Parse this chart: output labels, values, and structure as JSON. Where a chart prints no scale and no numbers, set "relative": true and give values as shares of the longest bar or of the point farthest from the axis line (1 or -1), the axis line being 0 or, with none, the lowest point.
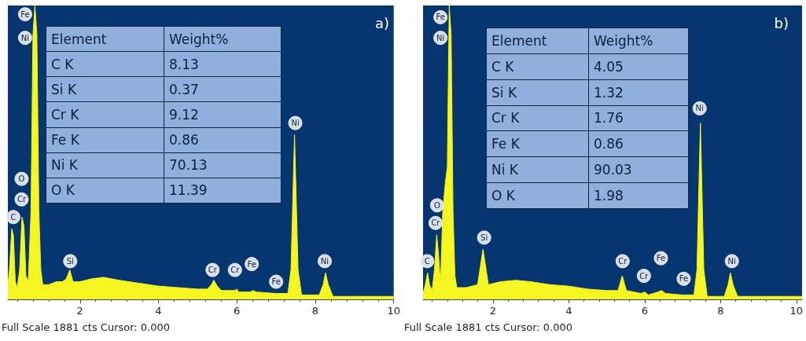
{
  "chart_data": [
    {
      "type": "area",
      "title": "a)",
      "relative": true,
      "xlim": [
        0.16,
        10.0
      ],
      "xticks": [
        2,
        4,
        6,
        8,
        10
      ],
      "grid": false,
      "series": [
        {
          "color": "#f5f520",
          "x": [
            0.16,
            0.2,
            0.26,
            0.3,
            0.35,
            0.4,
            0.46,
            0.52,
            0.57,
            0.62,
            0.68,
            0.75,
            0.8,
            0.85,
            0.9,
            0.95,
            1.0,
            1.05,
            1.2,
            1.4,
            1.55,
            1.65,
            1.74,
            1.82,
            2.0,
            2.3,
            2.6,
            3.0,
            3.5,
            4.0,
            4.5,
            5.0,
            5.25,
            5.35,
            5.41,
            5.5,
            5.6,
            5.95,
            6.0,
            6.05,
            6.35,
            6.4,
            6.5,
            7.0,
            7.3,
            7.38,
            7.47,
            7.56,
            7.65,
            8.1,
            8.2,
            8.26,
            8.33,
            8.45,
            9.0,
            10.0
          ],
          "values": [
            0.05,
            0.1,
            0.24,
            0.22,
            0.06,
            0.04,
            0.1,
            0.28,
            0.25,
            0.08,
            0.06,
            0.3,
            0.9,
            1,
            0.9,
            0.3,
            0.1,
            0.05,
            0.05,
            0.06,
            0.06,
            0.07,
            0.1,
            0.06,
            0.06,
            0.07,
            0.075,
            0.065,
            0.055,
            0.045,
            0.04,
            0.035,
            0.035,
            0.05,
            0.065,
            0.045,
            0.03,
            0.03,
            0.035,
            0.025,
            0.025,
            0.03,
            0.025,
            0.02,
            0.02,
            0.1,
            0.56,
            0.1,
            0.015,
            0.015,
            0.05,
            0.09,
            0.05,
            0.01,
            0.01,
            0.01
          ]
        }
      ],
      "annotations": [
        {
          "text": "Fe",
          "x": 0.6,
          "y": 0.97
        },
        {
          "text": "Ni",
          "x": 0.6,
          "y": 0.89
        },
        {
          "text": "O",
          "x": 0.51,
          "y": 0.41
        },
        {
          "text": "Cr",
          "x": 0.51,
          "y": 0.34
        },
        {
          "text": "C",
          "x": 0.3,
          "y": 0.28
        },
        {
          "text": "Si",
          "x": 1.75,
          "y": 0.13
        },
        {
          "text": "Ni",
          "x": 7.49,
          "y": 0.6
        },
        {
          "text": "Cr",
          "x": 5.38,
          "y": 0.1
        },
        {
          "text": "Cr",
          "x": 5.95,
          "y": 0.1
        },
        {
          "text": "Fe",
          "x": 6.38,
          "y": 0.12
        },
        {
          "text": "Fe",
          "x": 7.0,
          "y": 0.06
        },
        {
          "text": "Ni",
          "x": 8.24,
          "y": 0.13
        },
        "Full Scale 1881 cts Cursor: 0.000",
        "Element",
        "Weight%",
        "C K",
        "8.13",
        "Si K",
        "0.37",
        "Cr K",
        "9.12",
        "Fe K",
        "0.86",
        "Ni K",
        "70.13",
        "O K",
        "11.39"
      ]
    },
    {
      "type": "area",
      "title": "b)",
      "relative": true,
      "xlim": [
        0.16,
        10.15
      ],
      "xticks": [
        2,
        4,
        6,
        8,
        10
      ],
      "grid": false,
      "series": [
        {
          "color": "#f5f520",
          "x": [
            0.16,
            0.22,
            0.28,
            0.33,
            0.4,
            0.46,
            0.52,
            0.57,
            0.62,
            0.68,
            0.75,
            0.8,
            0.85,
            0.9,
            0.95,
            1.0,
            1.05,
            1.3,
            1.6,
            1.68,
            1.74,
            1.8,
            1.88,
            2.2,
            2.6,
            3.0,
            3.5,
            4.0,
            4.5,
            5.0,
            5.3,
            5.41,
            5.52,
            5.9,
            6.0,
            6.1,
            6.35,
            6.45,
            6.55,
            7.0,
            7.3,
            7.38,
            7.47,
            7.56,
            7.65,
            8.1,
            8.2,
            8.26,
            8.33,
            8.45,
            9.0,
            10.15
          ],
          "values": [
            0.02,
            0.05,
            0.09,
            0.05,
            0.03,
            0.1,
            0.22,
            0.15,
            0.05,
            0.3,
            0.4,
            0.45,
            1,
            0.9,
            0.3,
            0.08,
            0.04,
            0.04,
            0.05,
            0.12,
            0.17,
            0.12,
            0.05,
            0.06,
            0.065,
            0.06,
            0.05,
            0.045,
            0.035,
            0.03,
            0.03,
            0.08,
            0.03,
            0.02,
            0.025,
            0.015,
            0.025,
            0.03,
            0.02,
            0.015,
            0.015,
            0.1,
            0.6,
            0.1,
            0.01,
            0.01,
            0.05,
            0.09,
            0.05,
            0.01,
            0.01,
            0.01
          ]
        }
      ],
      "annotations": [
        {
          "text": "Fe",
          "x": 0.62,
          "y": 0.96
        },
        {
          "text": "Ni",
          "x": 0.62,
          "y": 0.89
        },
        {
          "text": "O",
          "x": 0.53,
          "y": 0.32
        },
        {
          "text": "Cr",
          "x": 0.49,
          "y": 0.26
        },
        {
          "text": "C",
          "x": 0.27,
          "y": 0.13
        },
        {
          "text": "Si",
          "x": 1.77,
          "y": 0.21
        },
        {
          "text": "Ni",
          "x": 7.45,
          "y": 0.65
        },
        {
          "text": "Cr",
          "x": 5.42,
          "y": 0.13
        },
        {
          "text": "Cr",
          "x": 5.98,
          "y": 0.08
        },
        {
          "text": "Fe",
          "x": 6.43,
          "y": 0.14
        },
        {
          "text": "Fe",
          "x": 7.03,
          "y": 0.07
        },
        {
          "text": "Ni",
          "x": 8.3,
          "y": 0.13
        },
        "Full Scale 1881 cts Cursor: 0.000",
        "Element",
        "Weight%",
        "C K",
        "4.05",
        "Si K",
        "1.32",
        "Cr K",
        "1.76",
        "Fe K",
        "0.86",
        "Ni K",
        "90.03",
        "O K",
        "1.98"
      ]
    }
  ]
}
